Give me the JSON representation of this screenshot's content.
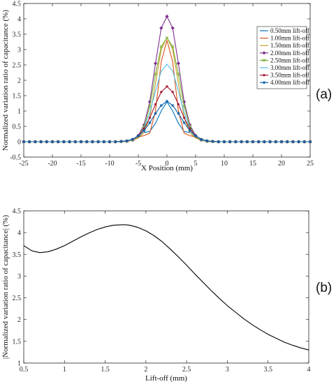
{
  "chart_data": [
    {
      "type": "line",
      "panel_label": "(a)",
      "xlabel": "X Position (mm)",
      "ylabel": "Normalized variation ratio of capacitance (%)",
      "xlim": [
        -25,
        25
      ],
      "ylim": [
        -0.5,
        4.5
      ],
      "xticks": [
        -25,
        -20,
        -15,
        -10,
        -5,
        0,
        5,
        10,
        15,
        20,
        25
      ],
      "yticks": [
        -0.5,
        0,
        0.5,
        1,
        1.5,
        2,
        2.5,
        3,
        3.5,
        4,
        4.5
      ],
      "grid": false,
      "legend_position": "top-right",
      "x": [
        -25,
        -24,
        -23,
        -22,
        -21,
        -20,
        -19,
        -18,
        -17,
        -16,
        -15,
        -14,
        -13,
        -12,
        -11,
        -10,
        -9,
        -8,
        -7,
        -6,
        -5,
        -4,
        -3,
        -2,
        -1,
        0,
        1,
        2,
        3,
        4,
        5,
        6,
        7,
        8,
        9,
        10,
        11,
        12,
        13,
        14,
        15,
        16,
        17,
        18,
        19,
        20,
        21,
        22,
        23,
        24,
        25
      ],
      "series": [
        {
          "name": "0.50mm lift-off",
          "color": "#0072bd",
          "marker": "none",
          "values": [
            0,
            0,
            0,
            0,
            0,
            0,
            0,
            0,
            0,
            0,
            0,
            0,
            0,
            0,
            0,
            0,
            0,
            0,
            0.01,
            0.05,
            0.15,
            0.3,
            0.33,
            0.6,
            1.0,
            1.3,
            1.0,
            0.6,
            0.33,
            0.3,
            0.15,
            0.05,
            0.01,
            0,
            0,
            0,
            0,
            0,
            0,
            0,
            0,
            0,
            0,
            0,
            0,
            0,
            0,
            0,
            0,
            0,
            0
          ]
        },
        {
          "name": "1.00mm lift-off",
          "color": "#d95319",
          "marker": "none",
          "values": [
            0,
            0,
            0,
            0,
            0,
            0,
            0,
            0,
            0,
            0,
            0,
            0,
            0,
            0,
            0,
            0,
            0,
            0,
            0.01,
            0.05,
            0.15,
            0.2,
            0.28,
            1.0,
            2.6,
            3.3,
            2.6,
            1.0,
            0.28,
            0.2,
            0.15,
            0.05,
            0.01,
            0,
            0,
            0,
            0,
            0,
            0,
            0,
            0,
            0,
            0,
            0,
            0,
            0,
            0,
            0,
            0,
            0,
            0
          ]
        },
        {
          "name": "1.50mm lift-off",
          "color": "#c9a227",
          "marker": "none",
          "values": [
            0,
            0,
            0,
            0,
            0,
            0,
            0,
            0,
            0,
            0,
            0,
            0,
            0,
            0,
            0,
            0,
            0,
            0,
            0.01,
            0.04,
            0.12,
            0.3,
            0.8,
            1.9,
            3.0,
            3.4,
            3.0,
            1.9,
            0.8,
            0.3,
            0.12,
            0.04,
            0.01,
            0,
            0,
            0,
            0,
            0,
            0,
            0,
            0,
            0,
            0,
            0,
            0,
            0,
            0,
            0,
            0,
            0,
            0
          ]
        },
        {
          "name": "2.00mm lift-off",
          "color": "#7e2f8e",
          "marker": "diamond",
          "values": [
            0,
            0,
            0,
            0,
            0,
            0,
            0,
            0,
            0,
            0,
            0,
            0,
            0,
            0,
            0,
            0,
            0,
            0.01,
            0.02,
            0.06,
            0.2,
            0.55,
            1.3,
            2.55,
            3.7,
            4.08,
            3.7,
            2.55,
            1.3,
            0.55,
            0.2,
            0.06,
            0.02,
            0.01,
            0,
            0,
            0,
            0,
            0,
            0,
            0,
            0,
            0,
            0,
            0,
            0,
            0,
            0,
            0,
            0,
            0
          ]
        },
        {
          "name": "2.50mm lift-off",
          "color": "#77ac30",
          "marker": "cross",
          "values": [
            0,
            0,
            0,
            0,
            0,
            0,
            0,
            0,
            0,
            0,
            0,
            0,
            0,
            0,
            0,
            0,
            0,
            0.01,
            0.02,
            0.06,
            0.18,
            0.5,
            1.15,
            2.2,
            3.1,
            3.38,
            3.1,
            2.2,
            1.15,
            0.5,
            0.18,
            0.06,
            0.02,
            0.01,
            0,
            0,
            0,
            0,
            0,
            0,
            0,
            0,
            0,
            0,
            0,
            0,
            0,
            0,
            0,
            0,
            0
          ]
        },
        {
          "name": "3.00mm lift-off",
          "color": "#4dbeee",
          "marker": "none",
          "values": [
            0,
            0,
            0,
            0,
            0,
            0,
            0,
            0,
            0,
            0,
            0,
            0,
            0,
            0,
            0,
            0,
            0,
            0.01,
            0.02,
            0.06,
            0.18,
            0.45,
            0.95,
            1.65,
            2.3,
            2.52,
            2.3,
            1.65,
            0.95,
            0.45,
            0.18,
            0.06,
            0.02,
            0.01,
            0,
            0,
            0,
            0,
            0,
            0,
            0,
            0,
            0,
            0,
            0,
            0,
            0,
            0,
            0,
            0,
            0
          ]
        },
        {
          "name": "3.50mm lift-off",
          "color": "#a2142f",
          "marker": "point",
          "values": [
            0,
            0,
            0,
            0,
            0,
            0,
            0,
            0,
            0,
            0,
            0,
            0,
            0,
            0,
            0,
            0,
            0,
            0.01,
            0.03,
            0.08,
            0.2,
            0.42,
            0.78,
            1.22,
            1.62,
            1.8,
            1.62,
            1.22,
            0.78,
            0.42,
            0.2,
            0.08,
            0.03,
            0.01,
            0,
            0,
            0,
            0,
            0,
            0,
            0,
            0,
            0,
            0,
            0,
            0,
            0,
            0,
            0,
            0,
            0
          ]
        },
        {
          "name": "4.00mm lift-off",
          "color": "#0f5fa8",
          "marker": "star",
          "values": [
            0,
            0,
            0,
            0,
            0,
            0,
            0,
            0,
            0,
            0,
            0,
            0,
            0,
            0,
            0,
            0,
            0,
            0.01,
            0.03,
            0.08,
            0.19,
            0.36,
            0.62,
            0.92,
            1.18,
            1.32,
            1.18,
            0.92,
            0.62,
            0.36,
            0.19,
            0.08,
            0.03,
            0.01,
            0,
            0,
            0,
            0,
            0,
            0,
            0,
            0,
            0,
            0,
            0,
            0,
            0,
            0,
            0,
            0,
            0
          ]
        }
      ]
    },
    {
      "type": "line",
      "panel_label": "(b)",
      "xlabel": "Lift-off (mm)",
      "ylabel": "|Normalized variation ratio of capacitance| (%)",
      "xlim": [
        0.5,
        4
      ],
      "ylim": [
        1,
        4.5
      ],
      "xticks": [
        0.5,
        1,
        1.5,
        2,
        2.5,
        3,
        3.5,
        4
      ],
      "yticks": [
        1,
        1.5,
        2,
        2.5,
        3,
        3.5,
        4,
        4.5
      ],
      "grid": false,
      "legend_position": "none",
      "series": [
        {
          "color": "#000000",
          "x": [
            0.5,
            0.6,
            0.7,
            0.8,
            0.9,
            1.0,
            1.1,
            1.2,
            1.3,
            1.4,
            1.5,
            1.6,
            1.7,
            1.75,
            1.8,
            1.9,
            2.0,
            2.1,
            2.2,
            2.3,
            2.4,
            2.5,
            2.6,
            2.7,
            2.8,
            2.9,
            3.0,
            3.1,
            3.2,
            3.3,
            3.4,
            3.5,
            3.6,
            3.7,
            3.8,
            3.9,
            4.0
          ],
          "values": [
            3.7,
            3.58,
            3.54,
            3.56,
            3.62,
            3.7,
            3.8,
            3.9,
            3.99,
            4.07,
            4.13,
            4.17,
            4.18,
            4.18,
            4.17,
            4.12,
            4.04,
            3.93,
            3.79,
            3.62,
            3.44,
            3.25,
            3.05,
            2.86,
            2.67,
            2.49,
            2.32,
            2.17,
            2.02,
            1.89,
            1.77,
            1.66,
            1.57,
            1.48,
            1.41,
            1.35,
            1.3
          ]
        }
      ]
    }
  ]
}
